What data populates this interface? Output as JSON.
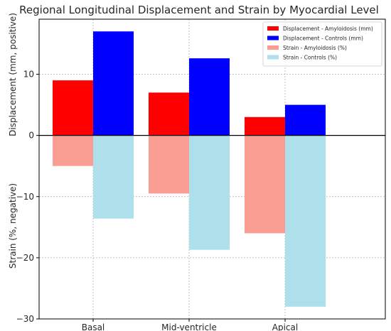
{
  "chart_data": {
    "type": "bar",
    "title": "Regional Longitudinal Displacement and Strain by Myocardial Level",
    "ylabel_top": "Displacement (mm, positive)",
    "ylabel_bottom": "Strain (%, negative)",
    "categories": [
      "Basal",
      "Mid-ventricle",
      "Apical"
    ],
    "ylim": [
      -30,
      19
    ],
    "yticks": [
      -30,
      -20,
      -10,
      0,
      10
    ],
    "grid": true,
    "legend_position": "top-right",
    "series": [
      {
        "name": "Displacement - Amyloidosis (mm)",
        "color": "#ff0000",
        "values": [
          9,
          7,
          3
        ]
      },
      {
        "name": "Displacement - Controls (mm)",
        "color": "#0000ff",
        "values": [
          17,
          12.6,
          5
        ]
      },
      {
        "name": "Strain - Amyloidosis (%)",
        "color": "#fa9e94",
        "values": [
          -5,
          -9.5,
          -16
        ]
      },
      {
        "name": "Strain - Controls (%)",
        "color": "#ade0ea",
        "values": [
          -13.6,
          -18.7,
          -28
        ]
      }
    ]
  }
}
